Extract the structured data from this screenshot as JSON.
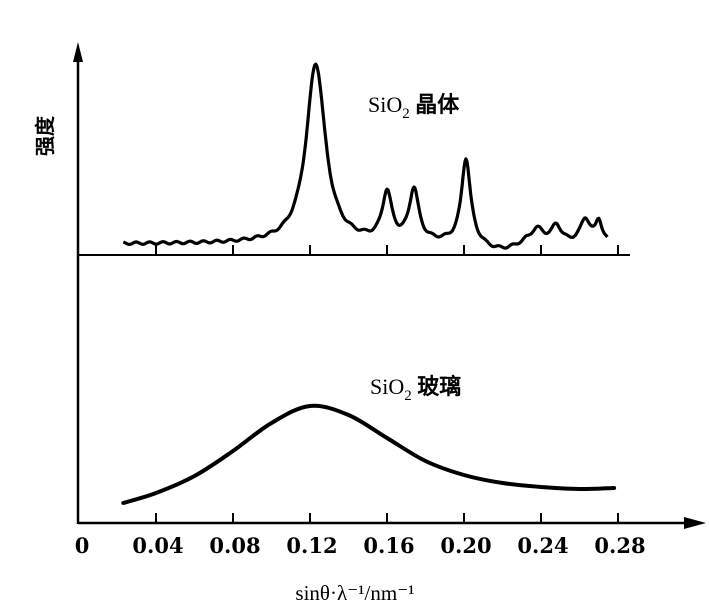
{
  "chart_data": {
    "type": "line",
    "title": "",
    "xlabel": "sinθ·λ⁻¹/nm⁻¹",
    "ylabel": "强度",
    "xlim": [
      0,
      0.3
    ],
    "xticks": [
      "0",
      "0.04",
      "0.08",
      "0.12",
      "0.16",
      "0.20",
      "0.24",
      "0.28"
    ],
    "xtick_values": [
      0,
      0.04,
      0.08,
      0.12,
      0.16,
      0.2,
      0.24,
      0.28
    ],
    "grid": false,
    "series": [
      {
        "name": "SiO₂ 晶体",
        "name_parts": {
          "base": "SiO",
          "sub": "2",
          "suffix": " 晶体"
        },
        "x_range": [
          0.023,
          0.275
        ],
        "background": 11,
        "peaks": [
          {
            "x": 0.123,
            "height": 180,
            "width": 0.006
          },
          {
            "x": 0.16,
            "height": 48,
            "width": 0.003
          },
          {
            "x": 0.174,
            "height": 52,
            "width": 0.003
          },
          {
            "x": 0.201,
            "height": 84,
            "width": 0.0028
          },
          {
            "x": 0.238,
            "height": 14,
            "width": 0.004
          },
          {
            "x": 0.248,
            "height": 17,
            "width": 0.003
          },
          {
            "x": 0.263,
            "height": 24,
            "width": 0.003
          },
          {
            "x": 0.27,
            "height": 22,
            "width": 0.002
          }
        ]
      },
      {
        "name": "SiO₂ 玻璃",
        "name_parts": {
          "base": "SiO",
          "sub": "2",
          "suffix": " 玻璃"
        },
        "x": [
          0.023,
          0.04,
          0.06,
          0.08,
          0.1,
          0.12,
          0.14,
          0.16,
          0.18,
          0.2,
          0.22,
          0.24,
          0.26,
          0.278
        ],
        "y": [
          20,
          30,
          47,
          72,
          100,
          117,
          108,
          85,
          62,
          48,
          40,
          36,
          34,
          35
        ]
      }
    ]
  }
}
